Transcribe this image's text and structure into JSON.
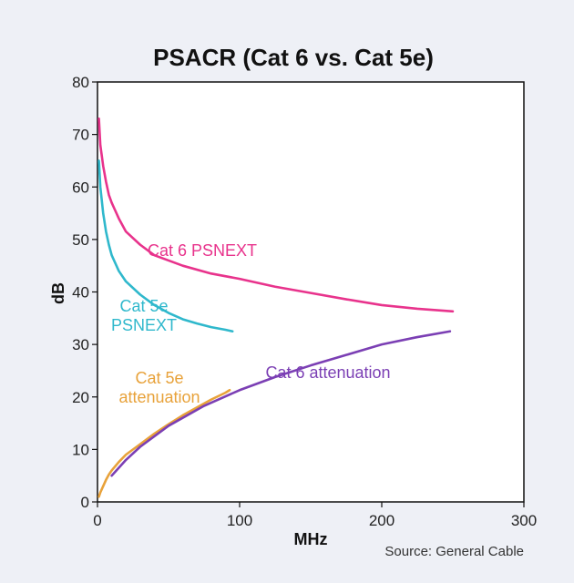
{
  "chart_data": {
    "type": "line",
    "title": "PSACR (Cat 6 vs. Cat 5e)",
    "xlabel": "MHz",
    "ylabel": "dB",
    "xlim": [
      0,
      300
    ],
    "ylim": [
      0,
      80
    ],
    "xticks": [
      "0",
      "100",
      "200",
      "300"
    ],
    "yticks": [
      "0",
      "10",
      "20",
      "30",
      "40",
      "50",
      "60",
      "70",
      "80"
    ],
    "grid": false,
    "source": "Source: General Cable",
    "series": [
      {
        "name": "Cat 6 PSNEXT",
        "label_lines": [
          "Cat 6 PSNEXT"
        ],
        "color": "#e8338c",
        "x": [
          1,
          2,
          4,
          6,
          8,
          10,
          15,
          20,
          30,
          40,
          50,
          60,
          80,
          100,
          125,
          150,
          175,
          200,
          225,
          250
        ],
        "y": [
          73,
          68,
          64,
          61,
          58.5,
          57,
          54,
          51.5,
          49,
          47,
          46,
          45,
          43.5,
          42.5,
          41,
          39.8,
          38.6,
          37.5,
          36.8,
          36.3
        ]
      },
      {
        "name": "Cat 5e PSNEXT",
        "label_lines": [
          "Cat 5e",
          "PSNEXT"
        ],
        "color": "#2fb8cc",
        "x": [
          1,
          2,
          4,
          6,
          8,
          10,
          15,
          20,
          30,
          40,
          50,
          60,
          70,
          80,
          90,
          95
        ],
        "y": [
          65,
          60,
          55,
          51.5,
          49,
          47,
          44,
          42,
          39.5,
          37.5,
          36,
          34.8,
          34,
          33.3,
          32.8,
          32.5
        ]
      },
      {
        "name": "Cat 5e attenuation",
        "label_lines": [
          "Cat 5e",
          "attenuation"
        ],
        "color": "#e8a23a",
        "x": [
          1,
          2,
          4,
          6,
          8,
          10,
          15,
          20,
          30,
          40,
          50,
          60,
          70,
          80,
          90,
          93
        ],
        "y": [
          1,
          1.8,
          3,
          4.2,
          5.2,
          6,
          7.6,
          9,
          11,
          13,
          14.8,
          16.5,
          18,
          19.5,
          20.8,
          21.3
        ]
      },
      {
        "name": "Cat 6 attenuation",
        "label_lines": [
          "Cat 6 attenuation"
        ],
        "color": "#7b3fb4",
        "x": [
          10,
          20,
          30,
          50,
          75,
          100,
          125,
          150,
          175,
          200,
          225,
          248
        ],
        "y": [
          5,
          8,
          10.5,
          14.5,
          18.3,
          21.3,
          23.8,
          26,
          28,
          30,
          31.4,
          32.5
        ]
      }
    ]
  }
}
